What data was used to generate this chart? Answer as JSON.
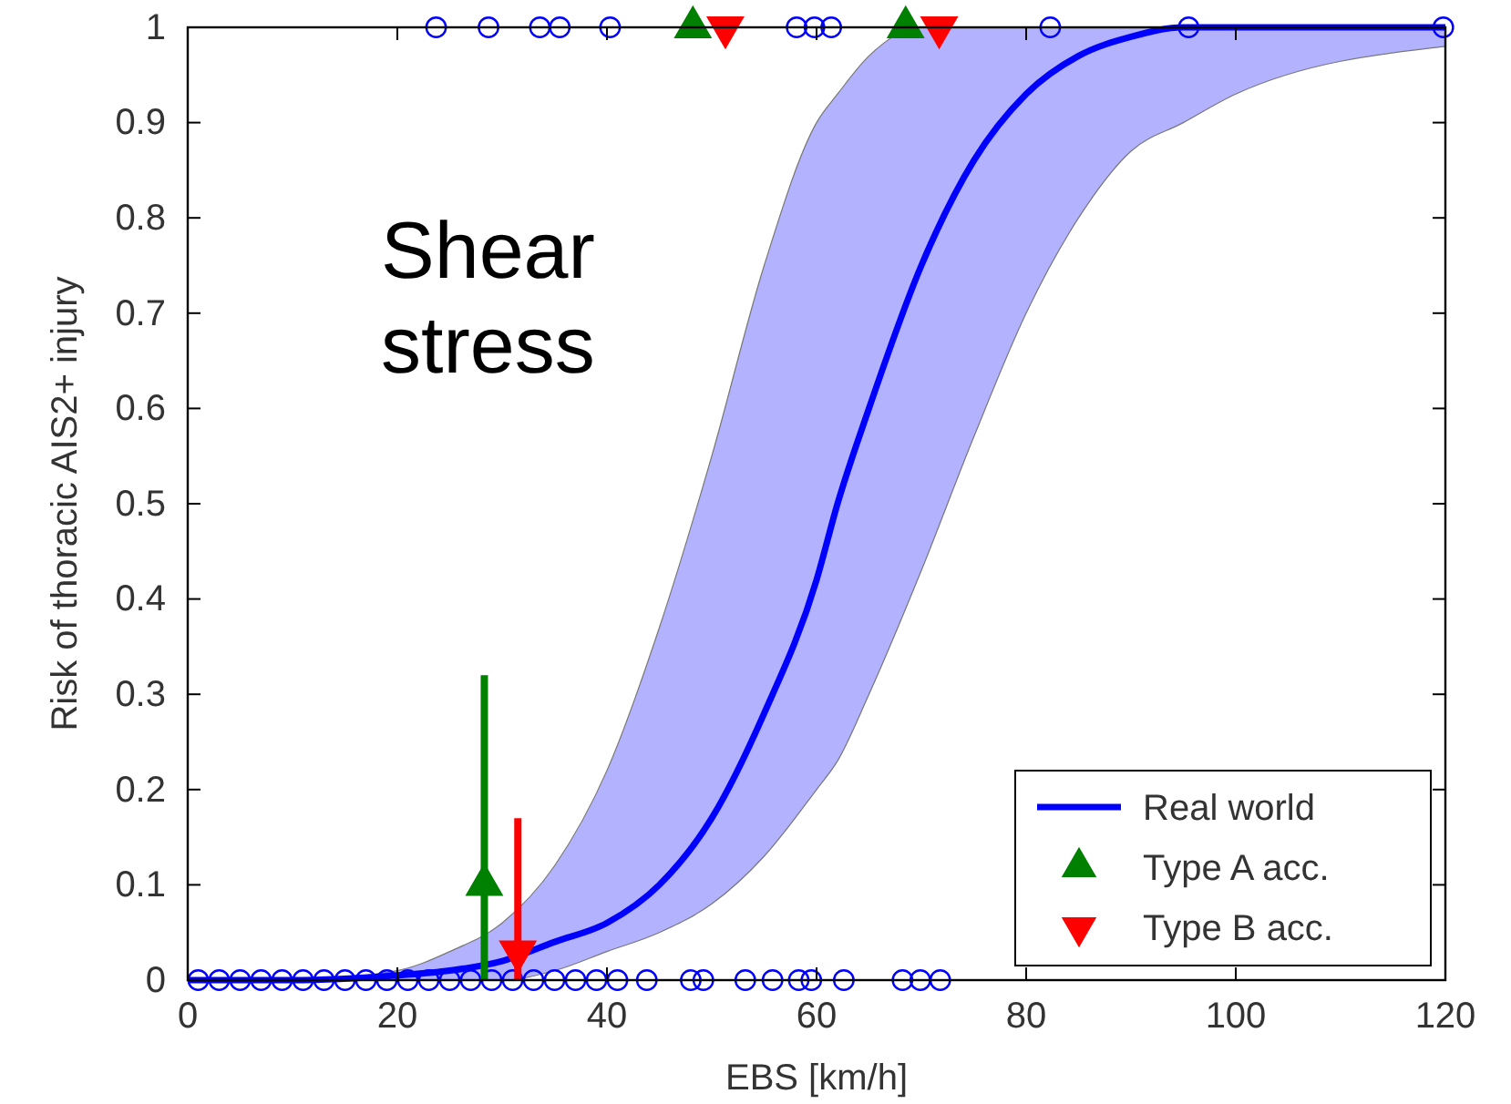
{
  "chart_data": {
    "type": "line",
    "xlabel": "EBS [km/h]",
    "ylabel": "Risk of thoracic AIS2+ injury",
    "annotations": [
      "Shear stress"
    ],
    "xlim": [
      0,
      120
    ],
    "ylim": [
      0,
      1
    ],
    "xticks": [
      0,
      20,
      40,
      60,
      80,
      100,
      120
    ],
    "yticks": [
      0,
      0.1,
      0.2,
      0.3,
      0.4,
      0.5,
      0.6,
      0.7,
      0.8,
      0.9,
      1
    ],
    "legend": "bottom right",
    "grid": false,
    "series": [
      {
        "name": "Real world",
        "color": "#0000ff",
        "marker": "none",
        "line_style": "solid",
        "x": [
          0,
          10,
          20,
          25,
          30,
          35,
          40,
          45,
          50,
          55,
          60,
          62,
          65,
          70,
          75,
          80,
          85,
          90,
          95,
          100,
          120
        ],
        "values": [
          0,
          0,
          0.005,
          0.01,
          0.02,
          0.04,
          0.06,
          0.1,
          0.17,
          0.28,
          0.42,
          0.5,
          0.6,
          0.75,
          0.86,
          0.93,
          0.97,
          0.99,
          1,
          1,
          1
        ],
        "lower": [
          0,
          0,
          0,
          0,
          0,
          0.01,
          0.03,
          0.05,
          0.08,
          0.13,
          0.2,
          0.23,
          0.3,
          0.43,
          0.57,
          0.7,
          0.8,
          0.87,
          0.9,
          0.93,
          0.98
        ],
        "upper": [
          0,
          0,
          0.01,
          0.03,
          0.06,
          0.12,
          0.22,
          0.37,
          0.55,
          0.75,
          0.9,
          0.93,
          0.97,
          1,
          1,
          1,
          1,
          1,
          1,
          1,
          1
        ]
      },
      {
        "type": "scatter",
        "color": "#0000ff",
        "marker": "circle",
        "x": [
          23.7,
          28.7,
          33.6,
          35.5,
          40.3,
          58.1,
          59.8,
          61.4,
          82.3,
          95.5,
          119.8
        ],
        "values": [
          1,
          1,
          1,
          1,
          1,
          1,
          1,
          1,
          1,
          1,
          1
        ]
      },
      {
        "type": "scatter",
        "color": "#0000ff",
        "marker": "circle",
        "x": [
          1,
          3,
          5,
          7,
          9,
          11,
          13,
          15,
          17,
          19,
          21,
          23,
          25,
          27,
          29,
          31,
          33,
          35,
          37,
          39,
          41,
          43.8,
          48,
          49.2,
          53.2,
          55.8,
          58.3,
          59.5,
          62.6,
          68.2,
          69.9,
          71.8
        ],
        "values": [
          0,
          0,
          0,
          0,
          0,
          0,
          0,
          0,
          0,
          0,
          0,
          0,
          0,
          0,
          0,
          0,
          0,
          0,
          0,
          0,
          0,
          0,
          0,
          0,
          0,
          0,
          0,
          0,
          0,
          0,
          0,
          0
        ]
      },
      {
        "type": "scatter",
        "name": "Type A acc.",
        "color": "#008000",
        "marker": "triangle",
        "x": [
          28.3,
          48.2,
          68.5
        ],
        "values": [
          0.1,
          1,
          1
        ],
        "errors": [
          [
            0,
            0.32
          ],
          null,
          null
        ]
      },
      {
        "type": "scatter",
        "name": "Type B acc.",
        "color": "#ff0000",
        "marker": "triangle-down",
        "x": [
          31.5,
          51.3,
          71.7
        ],
        "values": [
          0.03,
          1,
          1
        ],
        "errors": [
          [
            0,
            0.17
          ],
          null,
          null
        ]
      }
    ]
  }
}
